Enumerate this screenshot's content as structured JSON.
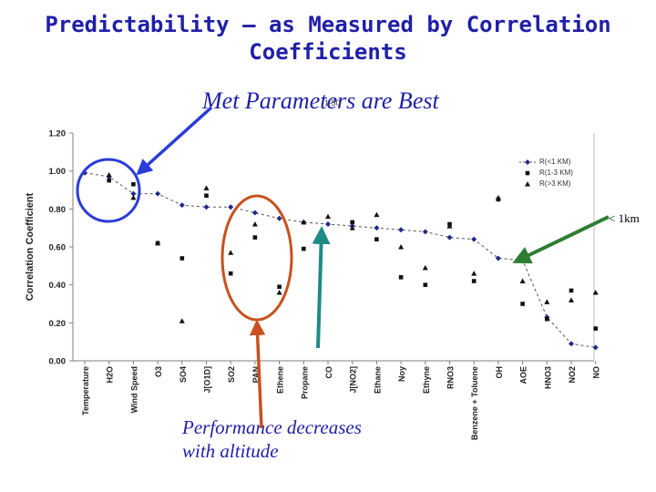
{
  "title_line1": "Predictability – as Measured by Correlation",
  "title_line2": "Coefficients",
  "annotations": {
    "top": "Met Parameters are Best",
    "bottom_line1": "Performance decreases",
    "bottom_line2": "with altitude",
    "right": "< 1km",
    "small": "1 50"
  },
  "colors": {
    "title": "#1f1fa8",
    "blue_arrow": "#2a3cd8",
    "red_ellipse": "#c8511e",
    "teal_arrow": "#1e8a86",
    "green_arrow": "#2e7d32"
  },
  "chart_data": {
    "type": "scatter",
    "ylabel": "Correlation Coefficient",
    "xlabel": "",
    "ylim": [
      0,
      1.2
    ],
    "yticks": [
      "0.00",
      "0.20",
      "0.40",
      "0.60",
      "0.80",
      "1.00",
      "1.20"
    ],
    "legend_position": "top-right",
    "categories": [
      "Temperature",
      "H2O",
      "Wind Speed",
      "O3",
      "SO4",
      "J[O1D]",
      "SO2",
      "PAN",
      "Ethene",
      "Propane",
      "CO",
      "J[NO2]",
      "Ethane",
      "Noy",
      "Ethyne",
      "RNO3",
      "Benzene + Toluene",
      "OH",
      "AOE",
      "HNO3",
      "NO2",
      "NO"
    ],
    "series": [
      {
        "name": "R(<1 KM)",
        "marker": "diamond",
        "line": "dashed",
        "values": [
          0.99,
          0.97,
          0.88,
          0.88,
          0.82,
          0.81,
          0.81,
          0.78,
          0.75,
          0.73,
          0.72,
          0.71,
          0.7,
          0.69,
          0.68,
          0.65,
          0.64,
          0.54,
          0.53,
          0.23,
          0.09,
          0.07
        ]
      },
      {
        "name": "R(1-3 KM)",
        "marker": "square",
        "values": [
          null,
          0.95,
          0.93,
          0.62,
          0.54,
          0.87,
          0.46,
          0.65,
          0.39,
          0.59,
          null,
          0.73,
          0.64,
          0.44,
          0.4,
          0.72,
          0.42,
          0.85,
          0.3,
          0.22,
          0.37,
          0.17
        ]
      },
      {
        "name": "R(>3 KM)",
        "marker": "triangle",
        "values": [
          null,
          0.98,
          0.86,
          0.62,
          0.21,
          0.91,
          0.57,
          0.72,
          0.36,
          0.73,
          0.76,
          0.7,
          0.77,
          0.6,
          0.49,
          0.71,
          0.46,
          0.86,
          0.42,
          0.31,
          0.32,
          0.36
        ]
      }
    ]
  }
}
